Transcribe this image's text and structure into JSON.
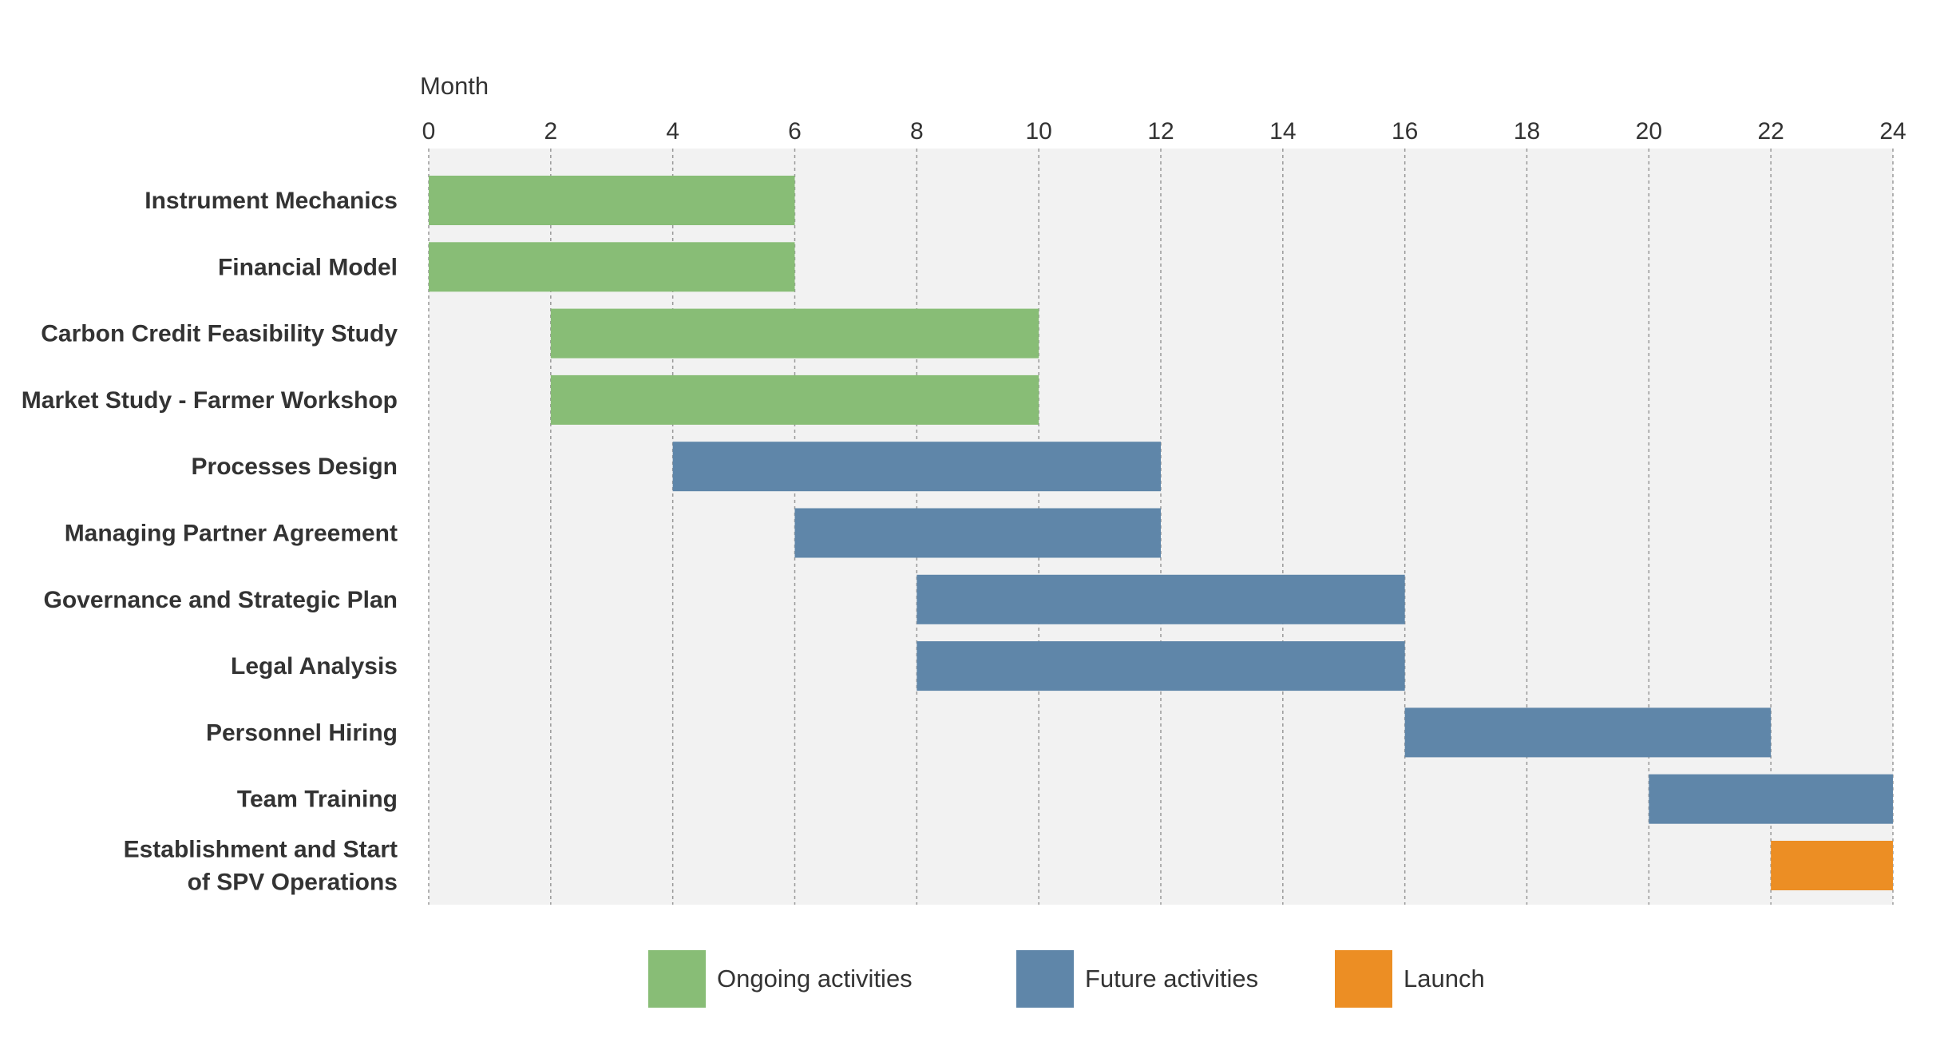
{
  "chart_data": {
    "type": "gantt",
    "title": "",
    "xlabel": "Month",
    "xlim": [
      0,
      24
    ],
    "xticks": [
      0,
      2,
      4,
      6,
      8,
      10,
      12,
      14,
      16,
      18,
      20,
      22,
      24
    ],
    "grid": true,
    "legend_position": "bottom",
    "series": [
      {
        "name": "Ongoing activities",
        "color": "#88BD76"
      },
      {
        "name": "Future activities",
        "color": "#5F86A9"
      },
      {
        "name": "Launch",
        "color": "#EC8E24"
      }
    ],
    "tasks": [
      {
        "lines": [
          "Instrument Mechanics"
        ],
        "start": 0,
        "end": 6,
        "series": 0
      },
      {
        "lines": [
          "Financial Model"
        ],
        "start": 0,
        "end": 6,
        "series": 0
      },
      {
        "lines": [
          "Carbon Credit Feasibility Study"
        ],
        "start": 2,
        "end": 10,
        "series": 0
      },
      {
        "lines": [
          "Market Study - Farmer Workshop"
        ],
        "start": 2,
        "end": 10,
        "series": 0
      },
      {
        "lines": [
          "Processes Design"
        ],
        "start": 4,
        "end": 12,
        "series": 1
      },
      {
        "lines": [
          "Managing Partner Agreement"
        ],
        "start": 6,
        "end": 12,
        "series": 1
      },
      {
        "lines": [
          "Governance and Strategic Plan"
        ],
        "start": 8,
        "end": 16,
        "series": 1
      },
      {
        "lines": [
          "Legal Analysis"
        ],
        "start": 8,
        "end": 16,
        "series": 1
      },
      {
        "lines": [
          "Personnel Hiring"
        ],
        "start": 16,
        "end": 22,
        "series": 1
      },
      {
        "lines": [
          "Team Training"
        ],
        "start": 20,
        "end": 24,
        "series": 1
      },
      {
        "lines": [
          "Establishment and Start",
          "of SPV Operations"
        ],
        "start": 22,
        "end": 24,
        "series": 2
      }
    ],
    "colors": {
      "plot_background": "#F2F2F2",
      "gridline": "#999999",
      "text": "#333333"
    }
  }
}
